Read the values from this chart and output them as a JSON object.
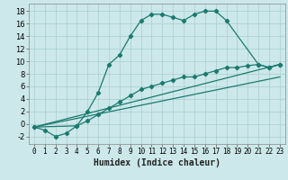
{
  "xlabel": "Humidex (Indice chaleur)",
  "bg_color": "#cce8ea",
  "grid_color": "#aacdd0",
  "line_color": "#1a7a6e",
  "xlim": [
    -0.5,
    23.5
  ],
  "ylim": [
    -3.2,
    19.2
  ],
  "yticks": [
    -2,
    0,
    2,
    4,
    6,
    8,
    10,
    12,
    14,
    16,
    18
  ],
  "xticks": [
    0,
    1,
    2,
    3,
    4,
    5,
    6,
    7,
    8,
    9,
    10,
    11,
    12,
    13,
    14,
    15,
    16,
    17,
    18,
    19,
    20,
    21,
    22,
    23
  ],
  "series1_x": [
    0,
    1,
    2,
    3,
    4,
    5,
    6,
    7,
    8,
    9,
    10,
    11,
    12,
    13,
    14,
    15,
    16,
    17,
    18,
    21,
    22,
    23
  ],
  "series1_y": [
    -0.5,
    -1.0,
    -2.0,
    -1.5,
    -0.3,
    2.0,
    5.0,
    9.5,
    11.0,
    14.0,
    16.5,
    17.5,
    17.5,
    17.0,
    16.5,
    17.5,
    18.0,
    18.0,
    16.5,
    9.5,
    9.0,
    9.5
  ],
  "series2_x": [
    0,
    4,
    5,
    6,
    7,
    8,
    9,
    10,
    11,
    12,
    13,
    14,
    15,
    16,
    17,
    18,
    19,
    20,
    21,
    22,
    23
  ],
  "series2_y": [
    -0.5,
    -0.3,
    0.5,
    1.5,
    2.5,
    3.5,
    4.5,
    5.5,
    6.0,
    6.5,
    7.0,
    7.5,
    7.5,
    8.0,
    8.5,
    9.0,
    9.0,
    9.3,
    9.5,
    9.0,
    9.5
  ],
  "series3_x": [
    0,
    23
  ],
  "series3_y": [
    -0.5,
    9.5
  ],
  "series4_x": [
    0,
    23
  ],
  "series4_y": [
    -0.5,
    7.5
  ]
}
